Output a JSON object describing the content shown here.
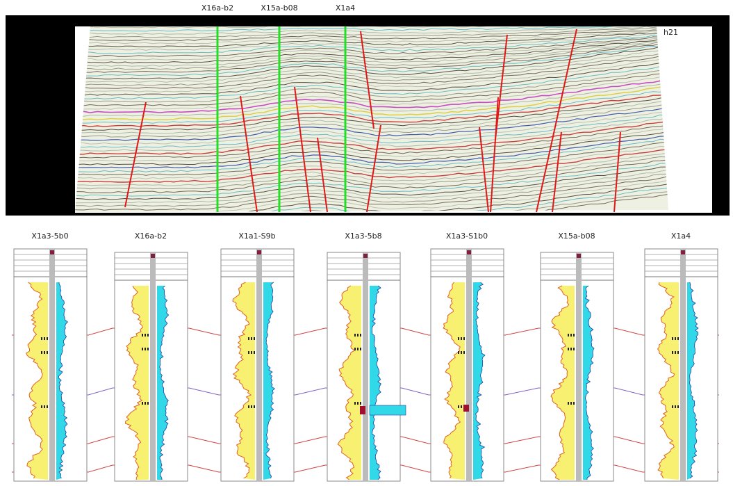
{
  "seismic": {
    "wells": [
      "X16a-b2",
      "X15a-b08",
      "X1a4"
    ],
    "horizon_label": "h21"
  },
  "logs": {
    "wells": [
      "X1a3-5b0",
      "X16a-b2",
      "X1a1-S9b",
      "X1a3-5b8",
      "X1a3-S1b0",
      "X15a-b08",
      "X1a4"
    ]
  }
}
